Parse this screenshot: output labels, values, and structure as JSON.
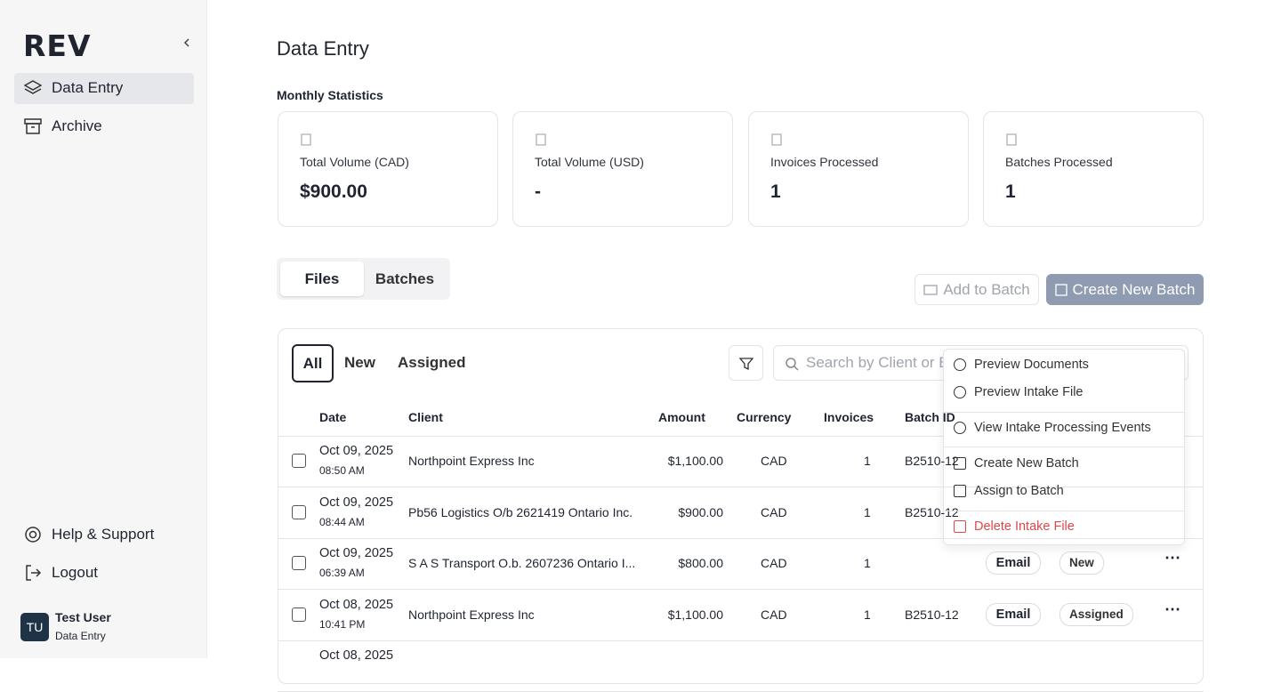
{
  "sidebar": {
    "logo": "REV",
    "nav": [
      "Data Entry",
      "Archive"
    ],
    "footer_nav": [
      "Help & Support",
      "Logout"
    ],
    "user": {
      "initials": "TU",
      "name": "Test User",
      "role": "Data Entry"
    }
  },
  "header": {
    "title": "Data Entry",
    "section": "Monthly Statistics"
  },
  "stats": [
    {
      "label": "Total Volume (CAD)",
      "value": "$900.00"
    },
    {
      "label": "Total Volume (USD)",
      "value": "-"
    },
    {
      "label": "Invoices Processed",
      "value": "1"
    },
    {
      "label": "Batches Processed",
      "value": "1"
    }
  ],
  "tabs": [
    "Files",
    "Batches"
  ],
  "actions": [
    "Add to Batch",
    "Create New Batch"
  ],
  "filters": [
    "All",
    "New",
    "Assigned"
  ],
  "search_placeholder": "Search by Client or Batch",
  "table": {
    "columns": [
      "Date",
      "Client",
      "Amount",
      "Currency",
      "Invoices",
      "Batch ID"
    ],
    "rows": [
      {
        "date": "Oct 09, 2025",
        "time": "08:50 AM",
        "client": "Northpoint Express Inc",
        "amount": "$1,100.00",
        "currency": "CAD",
        "invoices": "1",
        "batch": "B2510-12"
      },
      {
        "date": "Oct 09, 2025",
        "time": "08:44 AM",
        "client": "Pb56 Logistics O/b 2621419 Ontario Inc.",
        "amount": "$900.00",
        "currency": "CAD",
        "invoices": "1",
        "batch": "B2510-12"
      },
      {
        "date": "Oct 09, 2025",
        "time": "06:39 AM",
        "client": "S A S Transport O.b. 2607236 Ontario I...",
        "amount": "$800.00",
        "currency": "CAD",
        "invoices": "1",
        "source": "Email",
        "status": "New"
      },
      {
        "date": "Oct 08, 2025",
        "time": "10:41 PM",
        "client": "Northpoint Express Inc",
        "amount": "$1,100.00",
        "currency": "CAD",
        "invoices": "1",
        "batch": "B2510-12",
        "source": "Email",
        "status": "Assigned"
      },
      {
        "date": "Oct 08, 2025"
      }
    ]
  },
  "menu": {
    "items": [
      "Preview Documents",
      "Preview Intake File",
      "View Intake Processing Events",
      "Create New Batch",
      "Assign to Batch",
      "Delete Intake File"
    ]
  }
}
